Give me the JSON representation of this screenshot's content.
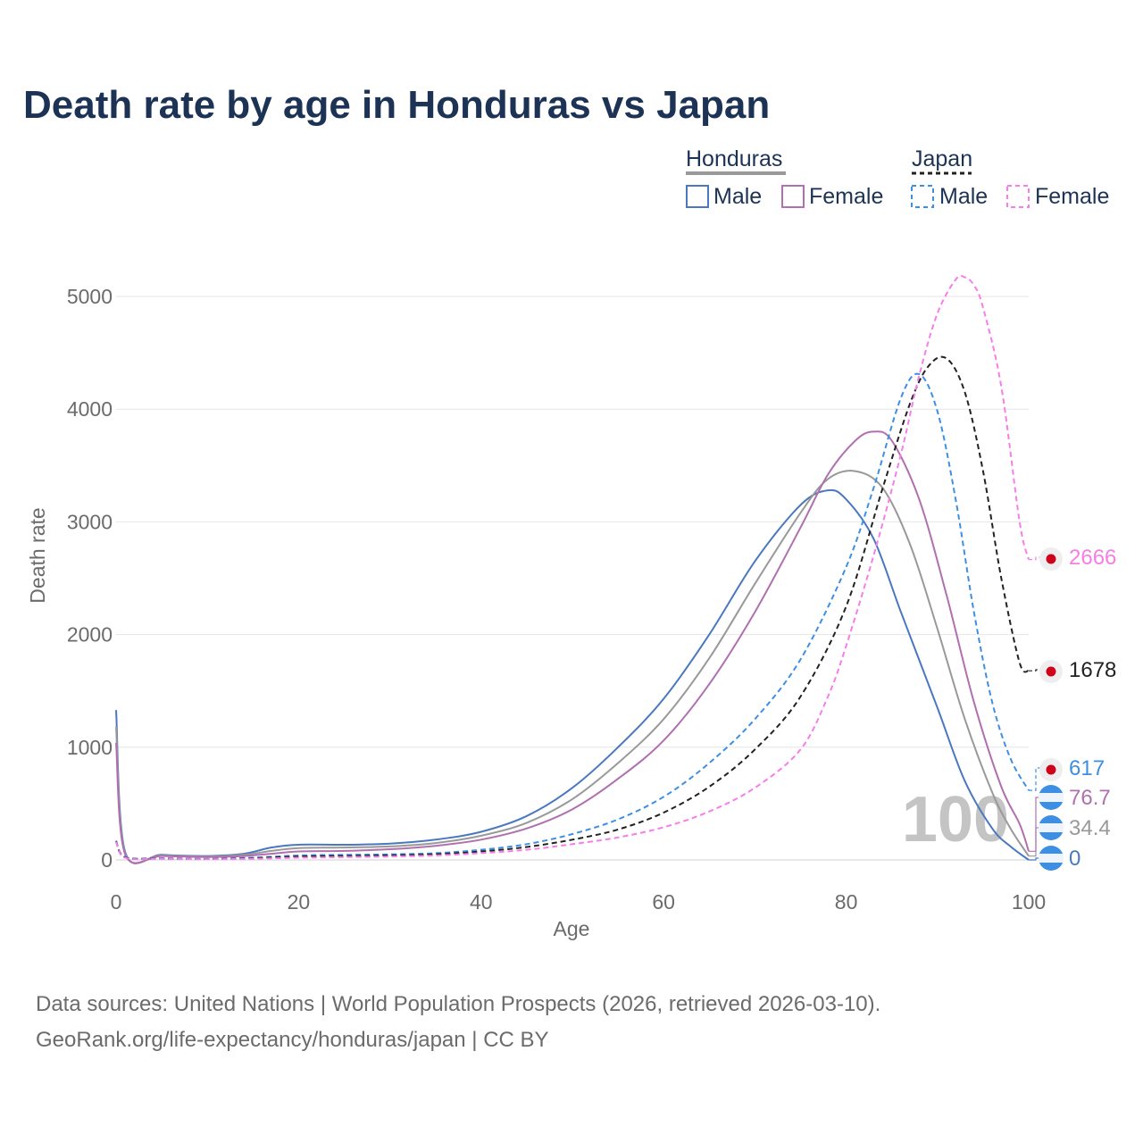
{
  "chart_data": {
    "type": "line",
    "title": "Death rate by age in Honduras vs Japan",
    "xlabel": "Age",
    "ylabel": "Death rate",
    "xlim": [
      0,
      100
    ],
    "ylim": [
      0,
      5000
    ],
    "x_ticks": [
      "0",
      "20",
      "40",
      "60",
      "80",
      "100"
    ],
    "y_ticks": [
      "0",
      "1000",
      "2000",
      "3000",
      "4000",
      "5000"
    ],
    "grid": true,
    "current_age_label": "100",
    "legend": {
      "groups": [
        {
          "country": "Honduras",
          "items": [
            "Male",
            "Female"
          ]
        },
        {
          "country": "Japan",
          "items": [
            "Male",
            "Female"
          ]
        }
      ]
    },
    "series": [
      {
        "name": "Honduras Male",
        "color": "#4a78bf",
        "dash": "solid",
        "end_value": "0",
        "points": [
          [
            0,
            1330
          ],
          [
            1,
            70
          ],
          [
            5,
            45
          ],
          [
            10,
            35
          ],
          [
            14,
            55
          ],
          [
            17,
            110
          ],
          [
            20,
            135
          ],
          [
            25,
            135
          ],
          [
            30,
            145
          ],
          [
            35,
            180
          ],
          [
            40,
            250
          ],
          [
            45,
            390
          ],
          [
            50,
            640
          ],
          [
            55,
            1000
          ],
          [
            60,
            1430
          ],
          [
            65,
            2000
          ],
          [
            70,
            2650
          ],
          [
            75,
            3150
          ],
          [
            78,
            3280
          ],
          [
            80,
            3200
          ],
          [
            83,
            2850
          ],
          [
            86,
            2200
          ],
          [
            90,
            1350
          ],
          [
            93,
            700
          ],
          [
            96,
            280
          ],
          [
            98,
            120
          ],
          [
            100,
            0
          ]
        ]
      },
      {
        "name": "Honduras Both",
        "color": "#999999",
        "dash": "solid",
        "end_value": "34.4",
        "points": [
          [
            0,
            1180
          ],
          [
            1,
            60
          ],
          [
            5,
            40
          ],
          [
            10,
            30
          ],
          [
            14,
            45
          ],
          [
            17,
            80
          ],
          [
            20,
            105
          ],
          [
            25,
            110
          ],
          [
            30,
            120
          ],
          [
            35,
            150
          ],
          [
            40,
            215
          ],
          [
            45,
            330
          ],
          [
            50,
            540
          ],
          [
            55,
            860
          ],
          [
            60,
            1250
          ],
          [
            65,
            1790
          ],
          [
            70,
            2450
          ],
          [
            75,
            3080
          ],
          [
            78,
            3380
          ],
          [
            81,
            3450
          ],
          [
            84,
            3300
          ],
          [
            87,
            2800
          ],
          [
            90,
            2050
          ],
          [
            93,
            1250
          ],
          [
            96,
            600
          ],
          [
            98,
            280
          ],
          [
            100,
            34.4
          ]
        ]
      },
      {
        "name": "Honduras Female",
        "color": "#b070b0",
        "dash": "solid",
        "end_value": "76.7",
        "points": [
          [
            0,
            1040
          ],
          [
            1,
            50
          ],
          [
            5,
            35
          ],
          [
            10,
            25
          ],
          [
            14,
            35
          ],
          [
            17,
            55
          ],
          [
            20,
            75
          ],
          [
            25,
            80
          ],
          [
            30,
            95
          ],
          [
            35,
            125
          ],
          [
            40,
            180
          ],
          [
            45,
            280
          ],
          [
            50,
            450
          ],
          [
            55,
            720
          ],
          [
            60,
            1060
          ],
          [
            65,
            1560
          ],
          [
            70,
            2200
          ],
          [
            75,
            2950
          ],
          [
            78,
            3420
          ],
          [
            81,
            3720
          ],
          [
            83,
            3800
          ],
          [
            85,
            3720
          ],
          [
            88,
            3200
          ],
          [
            91,
            2350
          ],
          [
            94,
            1400
          ],
          [
            97,
            650
          ],
          [
            99,
            320
          ],
          [
            100,
            76.7
          ]
        ]
      },
      {
        "name": "Japan Male",
        "color": "#3d8fe3",
        "dash": "dashed",
        "end_value": "617",
        "points": [
          [
            0,
            170
          ],
          [
            1,
            25
          ],
          [
            5,
            15
          ],
          [
            10,
            10
          ],
          [
            15,
            20
          ],
          [
            20,
            40
          ],
          [
            25,
            45
          ],
          [
            30,
            50
          ],
          [
            35,
            60
          ],
          [
            40,
            90
          ],
          [
            45,
            140
          ],
          [
            50,
            230
          ],
          [
            55,
            360
          ],
          [
            60,
            560
          ],
          [
            65,
            860
          ],
          [
            70,
            1250
          ],
          [
            75,
            1780
          ],
          [
            80,
            2600
          ],
          [
            83,
            3300
          ],
          [
            86,
            4100
          ],
          [
            88,
            4310
          ],
          [
            90,
            3980
          ],
          [
            92,
            3200
          ],
          [
            94,
            2200
          ],
          [
            96,
            1400
          ],
          [
            98,
            900
          ],
          [
            100,
            617
          ]
        ]
      },
      {
        "name": "Japan Both",
        "color": "#222222",
        "dash": "dashed",
        "end_value": "1678",
        "points": [
          [
            0,
            165
          ],
          [
            1,
            22
          ],
          [
            5,
            12
          ],
          [
            10,
            8
          ],
          [
            15,
            15
          ],
          [
            20,
            30
          ],
          [
            25,
            35
          ],
          [
            30,
            40
          ],
          [
            35,
            50
          ],
          [
            40,
            75
          ],
          [
            45,
            115
          ],
          [
            50,
            180
          ],
          [
            55,
            270
          ],
          [
            60,
            420
          ],
          [
            65,
            650
          ],
          [
            70,
            980
          ],
          [
            75,
            1450
          ],
          [
            80,
            2250
          ],
          [
            84,
            3300
          ],
          [
            87,
            4050
          ],
          [
            89,
            4380
          ],
          [
            91,
            4450
          ],
          [
            93,
            4150
          ],
          [
            95,
            3450
          ],
          [
            97,
            2500
          ],
          [
            99,
            1750
          ],
          [
            100,
            1678
          ]
        ]
      },
      {
        "name": "Japan Female",
        "color": "#f77de8",
        "dash": "dashed",
        "end_value": "2666",
        "points": [
          [
            0,
            160
          ],
          [
            1,
            20
          ],
          [
            5,
            10
          ],
          [
            10,
            7
          ],
          [
            15,
            10
          ],
          [
            20,
            20
          ],
          [
            25,
            25
          ],
          [
            30,
            30
          ],
          [
            35,
            40
          ],
          [
            40,
            60
          ],
          [
            45,
            90
          ],
          [
            50,
            140
          ],
          [
            55,
            200
          ],
          [
            60,
            290
          ],
          [
            65,
            430
          ],
          [
            70,
            640
          ],
          [
            75,
            980
          ],
          [
            78,
            1450
          ],
          [
            80,
            1900
          ],
          [
            83,
            2700
          ],
          [
            86,
            3600
          ],
          [
            88,
            4300
          ],
          [
            90,
            4850
          ],
          [
            92,
            5150
          ],
          [
            93,
            5170
          ],
          [
            94,
            5100
          ],
          [
            95,
            4900
          ],
          [
            97,
            4200
          ],
          [
            99,
            3000
          ],
          [
            100,
            2666
          ]
        ]
      }
    ]
  },
  "source": {
    "line1": "Data sources: United Nations | World Population Prospects (2026, retrieved 2026-03-10).",
    "line2": "GeoRank.org/life-expectancy/honduras/japan | CC BY"
  }
}
